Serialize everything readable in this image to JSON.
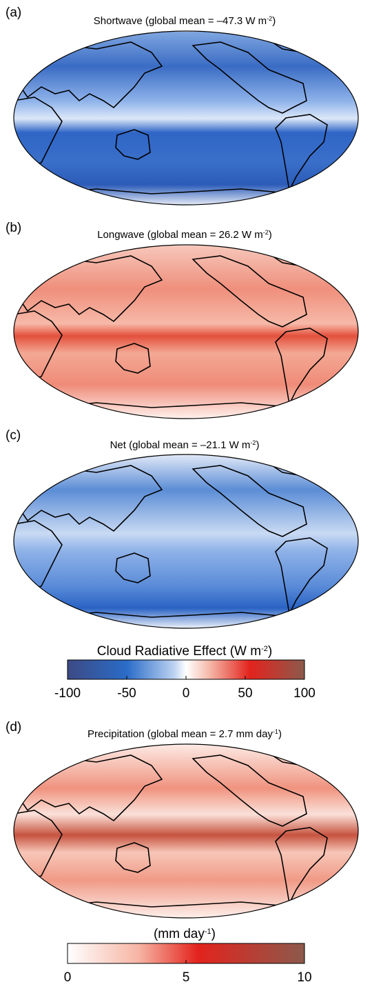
{
  "panels": [
    {
      "label": "(a)",
      "title": {
        "text": "Shortwave (global mean = –47.3 W m",
        "sup": "-2",
        "end": ")"
      }
    },
    {
      "label": "(b)",
      "title": {
        "text": "Longwave (global mean = 26.2 W m",
        "sup": "-2",
        "end": ")"
      }
    },
    {
      "label": "(c)",
      "title": {
        "text": "Net (global mean = –21.1 W m",
        "sup": "-2",
        "end": ")"
      }
    },
    {
      "label": "(d)",
      "title": {
        "text": "Precipitation (global mean = 2.7 mm day",
        "sup": "-1",
        "end": ")"
      }
    }
  ],
  "colorbars": [
    {
      "label": {
        "text": "Cloud Radiative Effect (W m",
        "sup": "-2",
        "end": ")"
      },
      "range": [
        -100,
        100
      ],
      "ticks": [
        -100,
        -50,
        0,
        50,
        100
      ]
    },
    {
      "label": {
        "text": "(mm day",
        "sup": "-1",
        "end": ")"
      },
      "range": [
        0,
        10
      ],
      "ticks": [
        0,
        5,
        10
      ]
    }
  ]
}
